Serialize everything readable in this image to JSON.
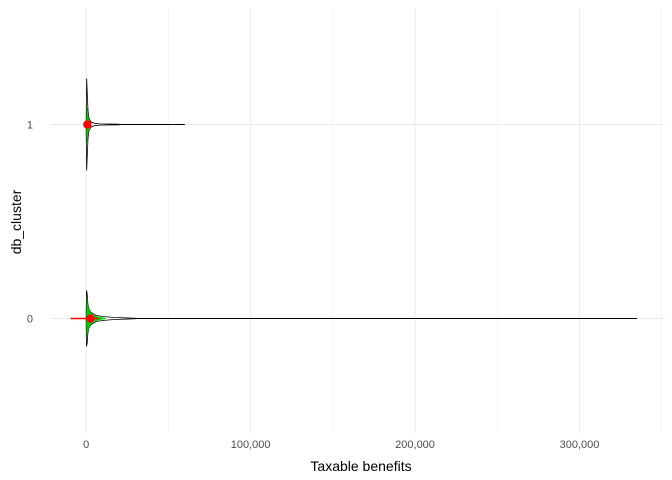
{
  "chart_data": {
    "type": "violin",
    "title": "",
    "xlabel": "Taxable benefits",
    "ylabel": "db_cluster",
    "categories": [
      "0",
      "1"
    ],
    "x_ticks": [
      0,
      100000,
      200000,
      300000
    ],
    "x_tick_labels": [
      "0",
      "100,000",
      "200,000",
      "300,000"
    ],
    "xlim": [
      -22000,
      352000
    ],
    "grid": true,
    "violins": [
      {
        "category": "0",
        "min": 0,
        "max": 335000,
        "tail_end": 17000,
        "mean": 2500,
        "error_bar": [
          -9500,
          7500
        ],
        "outline": [
          [
            0,
            0.04
          ],
          [
            200,
            0.28
          ],
          [
            600,
            0.25
          ],
          [
            1000,
            0.15
          ],
          [
            1500,
            0.1
          ],
          [
            2500,
            0.07
          ],
          [
            4000,
            0.05
          ],
          [
            6000,
            0.03
          ],
          [
            10000,
            0.02
          ],
          [
            17000,
            0.01
          ],
          [
            30000,
            0.003
          ]
        ],
        "inner": [
          [
            0,
            0.02
          ],
          [
            300,
            0.2
          ],
          [
            700,
            0.19
          ],
          [
            1200,
            0.12
          ],
          [
            2000,
            0.08
          ],
          [
            3500,
            0.05
          ],
          [
            5000,
            0.03
          ],
          [
            8000,
            0.015
          ],
          [
            12000,
            0.005
          ]
        ]
      },
      {
        "category": "1",
        "min": 0,
        "max": 60000,
        "tail_end": 8000,
        "mean": 700,
        "error_bar": [
          -800,
          2800
        ],
        "outline": [
          [
            0,
            0.05
          ],
          [
            300,
            0.46
          ],
          [
            700,
            0.3
          ],
          [
            1100,
            0.14
          ],
          [
            1700,
            0.06
          ],
          [
            3000,
            0.025
          ],
          [
            5000,
            0.012
          ],
          [
            8000,
            0.006
          ],
          [
            20000,
            0.003
          ]
        ],
        "inner": [
          [
            0,
            0.03
          ],
          [
            350,
            0.19
          ],
          [
            800,
            0.15
          ],
          [
            1300,
            0.07
          ],
          [
            2000,
            0.03
          ],
          [
            3000,
            0.01
          ]
        ]
      }
    ],
    "colors": {
      "outline": "#000000",
      "inner_fill": "#00cc00",
      "error_bar": "#ff0000",
      "mean_point": "#ff0000",
      "grid": "#ebebeb",
      "background": "#ffffff"
    }
  }
}
